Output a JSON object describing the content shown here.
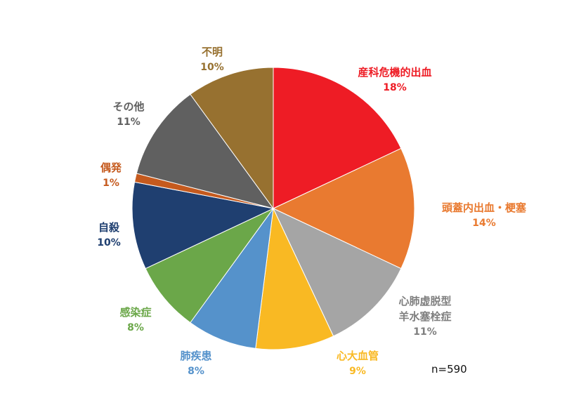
{
  "chart_data": {
    "type": "pie",
    "sample_size": "n=590",
    "slices": [
      {
        "label": [
          "産科危機的出血"
        ],
        "value": 18,
        "pct": "18%",
        "color": "#EE1C25"
      },
      {
        "label": [
          "頭蓋内出血・梗塞"
        ],
        "value": 14,
        "pct": "14%",
        "color": "#E97A30"
      },
      {
        "label": [
          "心肺虚脱型",
          "羊水塞栓症"
        ],
        "value": 11,
        "pct": "11%",
        "color": "#A5A5A5"
      },
      {
        "label": [
          "心大血管"
        ],
        "value": 9,
        "pct": "9%",
        "color": "#F9B923"
      },
      {
        "label": [
          "肺疾患"
        ],
        "value": 8,
        "pct": "8%",
        "color": "#5592CB"
      },
      {
        "label": [
          "感染症"
        ],
        "value": 8,
        "pct": "8%",
        "color": "#6BA749"
      },
      {
        "label": [
          "自殺"
        ],
        "value": 10,
        "pct": "10%",
        "color": "#1F3F70"
      },
      {
        "label": [
          "偶発"
        ],
        "value": 1,
        "pct": "1%",
        "color": "#C55A1E"
      },
      {
        "label": [
          "その他"
        ],
        "value": 11,
        "pct": "11%",
        "color": "#606060"
      },
      {
        "label": [
          "不明"
        ],
        "value": 10,
        "pct": "10%",
        "color": "#977130"
      }
    ],
    "label_colors": [
      "#EE1C25",
      "#E97A30",
      "#7F7F7F",
      "#F9B923",
      "#5592CB",
      "#6BA749",
      "#1F3F70",
      "#C55A1E",
      "#606060",
      "#977130"
    ]
  }
}
